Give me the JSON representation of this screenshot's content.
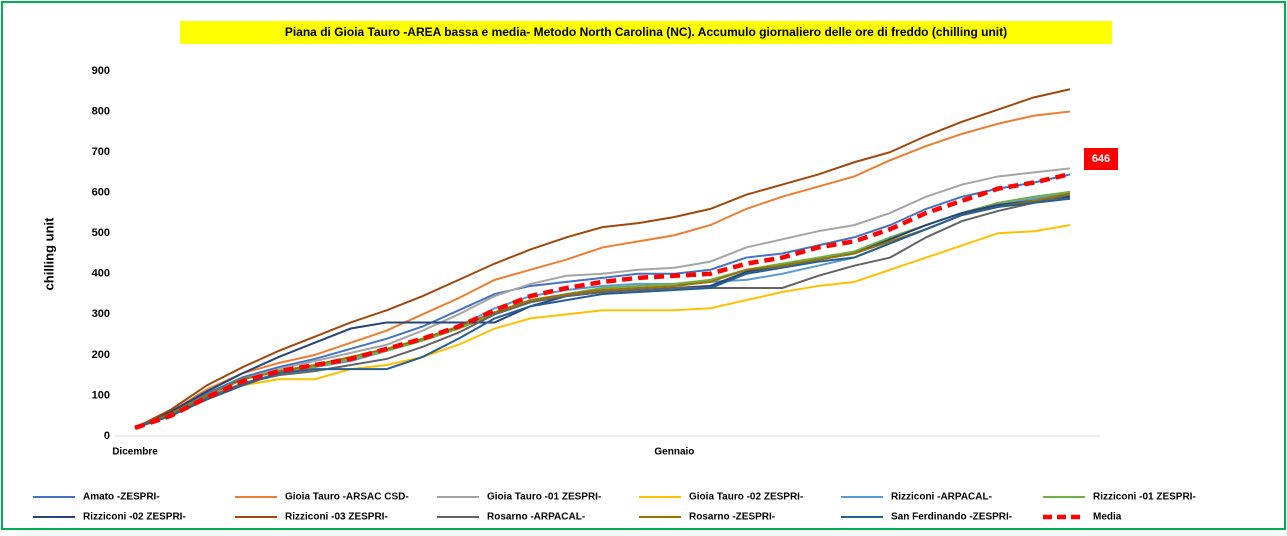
{
  "chart_data": {
    "type": "line",
    "title": "Piana di Gioia Tauro -AREA bassa e media- Metodo North Carolina (NC). Accumulo  giornaliero delle ore di freddo (chilling unit)",
    "y_label": "chilling unit",
    "categories": [
      "Dicembre",
      null,
      null,
      null,
      null,
      null,
      null,
      null,
      null,
      null,
      null,
      null,
      null,
      null,
      null,
      "Gennaio",
      null,
      null,
      null,
      null,
      null,
      null,
      null,
      null,
      null,
      null,
      null
    ],
    "ylim": [
      0,
      900
    ],
    "yticks": [
      0,
      100,
      200,
      300,
      400,
      500,
      600,
      700,
      800,
      900
    ],
    "grid": false,
    "series": [
      {
        "name": "Amato -ZESPRI-",
        "color": "#4472c4",
        "values": [
          20,
          55,
          105,
          145,
          170,
          190,
          215,
          240,
          270,
          310,
          350,
          370,
          380,
          390,
          400,
          400,
          410,
          440,
          450,
          470,
          490,
          520,
          560,
          590,
          610,
          625,
          645
        ]
      },
      {
        "name": "Gioia Tauro -ARSAC CSD-",
        "color": "#ed7d31",
        "values": [
          20,
          60,
          115,
          155,
          180,
          200,
          230,
          260,
          300,
          340,
          385,
          410,
          435,
          465,
          480,
          495,
          520,
          560,
          590,
          615,
          640,
          680,
          715,
          745,
          770,
          790,
          800
        ]
      },
      {
        "name": "Gioia Tauro -01 ZESPRI-",
        "color": "#a5a5a5",
        "values": [
          20,
          55,
          100,
          140,
          165,
          185,
          205,
          225,
          260,
          300,
          345,
          375,
          395,
          400,
          410,
          415,
          430,
          465,
          485,
          505,
          520,
          550,
          590,
          620,
          640,
          650,
          660
        ]
      },
      {
        "name": "Gioia Tauro -02 ZESPRI-",
        "color": "#ffc000",
        "values": [
          20,
          50,
          95,
          125,
          140,
          140,
          165,
          175,
          195,
          225,
          265,
          290,
          300,
          310,
          310,
          310,
          315,
          335,
          355,
          370,
          380,
          410,
          440,
          470,
          500,
          505,
          520
        ]
      },
      {
        "name": "Rizziconi -ARPACAL-",
        "color": "#5b9bd5",
        "values": [
          20,
          50,
          95,
          130,
          155,
          170,
          185,
          210,
          240,
          270,
          315,
          345,
          360,
          370,
          375,
          375,
          380,
          385,
          400,
          420,
          440,
          475,
          510,
          545,
          570,
          585,
          600
        ]
      },
      {
        "name": "Rizziconi -01 ZESPRI-",
        "color": "#70ad47",
        "values": [
          20,
          55,
          100,
          140,
          160,
          170,
          190,
          210,
          235,
          265,
          300,
          330,
          350,
          365,
          370,
          375,
          385,
          410,
          425,
          440,
          455,
          490,
          520,
          550,
          575,
          590,
          602
        ]
      },
      {
        "name": "Rizziconi -02 ZESPRI-",
        "color": "#264478",
        "values": [
          20,
          60,
          110,
          155,
          195,
          230,
          265,
          280,
          280,
          280,
          280,
          320,
          345,
          355,
          360,
          365,
          370,
          405,
          420,
          435,
          450,
          485,
          520,
          550,
          570,
          580,
          590
        ]
      },
      {
        "name": "Rizziconi -03 ZESPRI-",
        "color": "#9e480e",
        "values": [
          20,
          65,
          125,
          170,
          210,
          245,
          280,
          310,
          345,
          385,
          425,
          460,
          490,
          515,
          525,
          540,
          560,
          595,
          620,
          645,
          675,
          700,
          740,
          775,
          805,
          835,
          855
        ]
      },
      {
        "name": "Rosarno -ARPACAL-",
        "color": "#636363",
        "values": [
          20,
          50,
          95,
          130,
          150,
          160,
          175,
          190,
          220,
          255,
          300,
          330,
          345,
          355,
          360,
          365,
          365,
          365,
          365,
          395,
          420,
          440,
          490,
          530,
          555,
          575,
          595
        ]
      },
      {
        "name": "Rosarno -ZESPRI-",
        "color": "#997300",
        "values": [
          20,
          55,
          100,
          140,
          160,
          175,
          195,
          215,
          240,
          270,
          305,
          335,
          350,
          360,
          365,
          370,
          380,
          410,
          420,
          435,
          450,
          480,
          510,
          545,
          565,
          580,
          598
        ]
      },
      {
        "name": "San Ferdinando -ZESPRI-",
        "color": "#255e91",
        "values": [
          20,
          50,
          90,
          125,
          155,
          165,
          165,
          165,
          195,
          240,
          290,
          320,
          335,
          350,
          355,
          360,
          365,
          400,
          415,
          430,
          440,
          475,
          510,
          545,
          565,
          575,
          585
        ]
      },
      {
        "name": "Media",
        "color": "#ff0000",
        "dashed": true,
        "values": [
          20,
          50,
          95,
          135,
          160,
          175,
          190,
          215,
          240,
          270,
          310,
          345,
          365,
          380,
          390,
          395,
          400,
          425,
          440,
          465,
          480,
          510,
          550,
          580,
          610,
          625,
          646
        ]
      }
    ]
  }
}
